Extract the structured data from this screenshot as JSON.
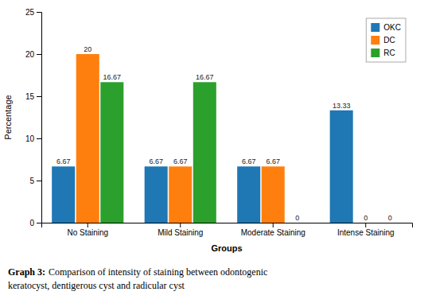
{
  "chart_data": {
    "type": "bar",
    "categories": [
      "No Staining",
      "Mild Staining",
      "Moderate Staining",
      "Intense Staining"
    ],
    "series": [
      {
        "name": "OKC",
        "values": [
          6.67,
          6.67,
          6.67,
          13.33
        ]
      },
      {
        "name": "DC",
        "values": [
          20,
          6.67,
          6.67,
          0
        ]
      },
      {
        "name": "RC",
        "values": [
          16.67,
          16.67,
          0,
          0
        ]
      }
    ],
    "xlabel": "Groups",
    "ylabel": "Percentage",
    "ylim": [
      0,
      25
    ],
    "yticks": [
      0,
      5,
      10,
      15,
      20,
      25
    ],
    "data_labels": true,
    "legend": "upper right",
    "grid": false,
    "annotations": [
      "Graph 3:",
      "Comparison of intensity of staining between odontogenic",
      "keratocyst, dentigerous cyst and radicular cyst"
    ]
  }
}
